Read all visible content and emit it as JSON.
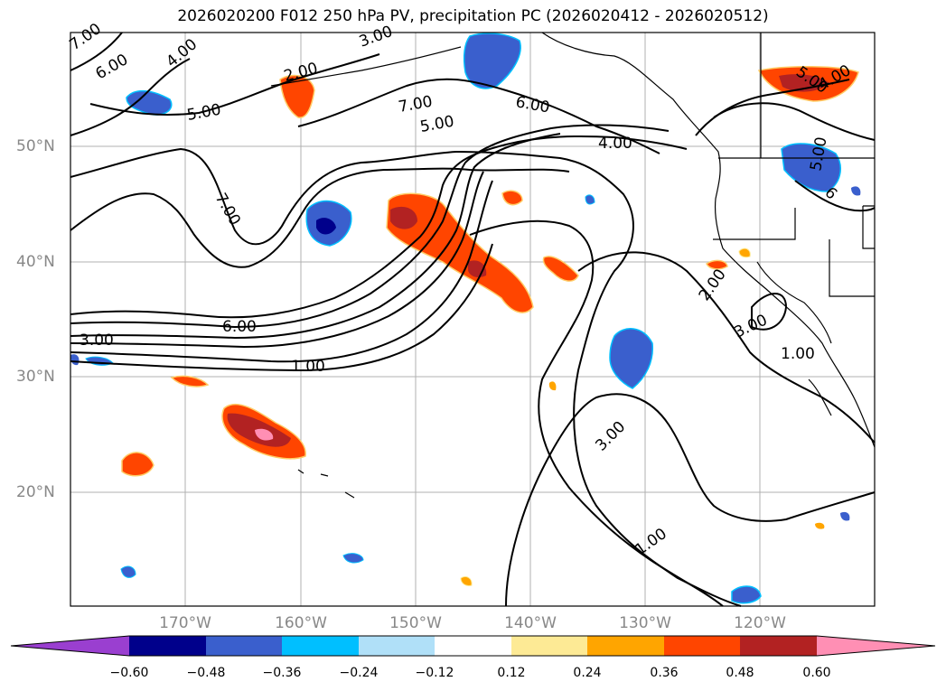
{
  "title": "2026020200 F012 250 hPa PV, precipitation PC (2026020412 - 2026020512)",
  "axes": {
    "latitude_labels": [
      "50°N",
      "40°N",
      "30°N",
      "20°N"
    ],
    "longitude_labels": [
      "170°W",
      "160°W",
      "150°W",
      "140°W",
      "130°W",
      "120°W"
    ]
  },
  "colorbar": {
    "ticks": [
      "−0.60",
      "−0.48",
      "−0.36",
      "−0.24",
      "−0.12",
      "0.12",
      "0.24",
      "0.36",
      "0.48",
      "0.60"
    ],
    "colors": [
      "#9a3fd0",
      "#00008b",
      "#3a5fcd",
      "#00bfff",
      "#b0e0f8",
      "#ffffff",
      "#fdea95",
      "#ffa500",
      "#ff4500",
      "#b22222",
      "#ff8fb4"
    ]
  },
  "contour_labels": [
    "7.00",
    "6.00",
    "4.00",
    "3.00",
    "2.00",
    "5.00",
    "7.00",
    "5.00",
    "6.00",
    "4.00",
    "7.00",
    "6.00",
    "3.00",
    "1.00",
    "2.00",
    "3.00",
    "1.00",
    "3.00",
    "1.00",
    "5.00",
    "4.00",
    "5.00",
    "6"
  ],
  "palette": {
    "land_outline": "#000000",
    "grid": "#b0b0b0",
    "label_gray": "#888888"
  }
}
